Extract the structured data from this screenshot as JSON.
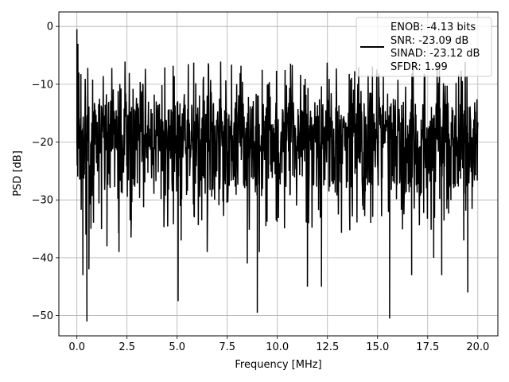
{
  "chart_data": {
    "type": "line",
    "title": "",
    "xlabel": "Frequency [MHz]",
    "ylabel": "PSD [dB]",
    "xlim": [
      -0.9,
      21.0
    ],
    "ylim": [
      -53.5,
      2.5
    ],
    "x_ticks": [
      0,
      2.5,
      5,
      7.5,
      10,
      12.5,
      15,
      17.5,
      20
    ],
    "x_tick_labels": [
      "0.0",
      "2.5",
      "5.0",
      "7.5",
      "10.0",
      "12.5",
      "15.0",
      "17.5",
      "20.0"
    ],
    "y_ticks": [
      0,
      -10,
      -20,
      -30,
      -40,
      -50
    ],
    "y_tick_labels": [
      "0",
      "−10",
      "−20",
      "−30",
      "−40",
      "−50"
    ],
    "grid": true,
    "legend_position": "top-right",
    "legend_lines": [
      "ENOB: -4.13 bits",
      "SNR: -23.09 dB",
      "SINAD: -23.12 dB",
      "SFDR: 1.99"
    ],
    "series": [
      {
        "color": "#000000",
        "noise_floor_range": [
          -30,
          -9
        ],
        "x": [
          0.0,
          0.05,
          0.1,
          0.3,
          0.45,
          0.5,
          0.6,
          0.7,
          1.5,
          2.1,
          2.7,
          5.05,
          5.2,
          6.5,
          8.5,
          9.0,
          9.1,
          11.5,
          12.2,
          15.6,
          16.7,
          17.8,
          18.2,
          19.3,
          19.5,
          20.0
        ],
        "y": [
          -0.5,
          -3,
          -8,
          -43,
          -36,
          -51,
          -42,
          -35,
          -38,
          -39,
          -36.5,
          -47.5,
          -37,
          -39,
          -41,
          -49.5,
          -39,
          -45,
          -45,
          -50.5,
          -43,
          -40,
          -43,
          -37,
          -46,
          -17
        ]
      }
    ]
  }
}
